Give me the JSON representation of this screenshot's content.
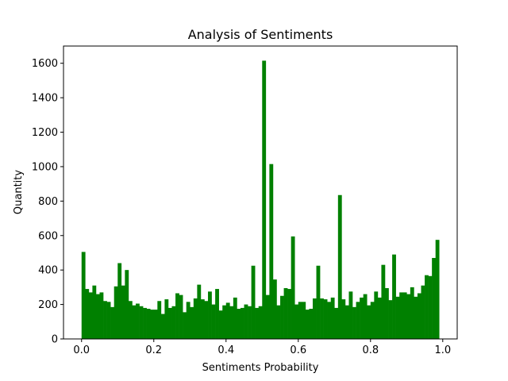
{
  "chart_data": {
    "type": "bar",
    "title": "Analysis of Sentiments",
    "xlabel": "Sentiments Probability",
    "ylabel": "Quantity",
    "xlim": [
      -0.05,
      1.04
    ],
    "ylim": [
      0,
      1700
    ],
    "bin_width": 0.01,
    "x_start": 0.0,
    "grid": false,
    "legend": "none",
    "bar_color": "#008000",
    "x_ticks": [
      {
        "value": 0.0,
        "label": "0.0"
      },
      {
        "value": 0.2,
        "label": "0.2"
      },
      {
        "value": 0.4,
        "label": "0.4"
      },
      {
        "value": 0.6,
        "label": "0.6"
      },
      {
        "value": 0.8,
        "label": "0.8"
      },
      {
        "value": 1.0,
        "label": "1.0"
      }
    ],
    "y_ticks": [
      {
        "value": 0,
        "label": "0"
      },
      {
        "value": 200,
        "label": "200"
      },
      {
        "value": 400,
        "label": "400"
      },
      {
        "value": 600,
        "label": "600"
      },
      {
        "value": 800,
        "label": "800"
      },
      {
        "value": 1000,
        "label": "1000"
      },
      {
        "value": 1200,
        "label": "1200"
      },
      {
        "value": 1400,
        "label": "1400"
      },
      {
        "value": 1600,
        "label": "1600"
      }
    ],
    "values": [
      505,
      290,
      270,
      310,
      260,
      270,
      220,
      215,
      185,
      305,
      440,
      310,
      400,
      220,
      195,
      205,
      190,
      180,
      175,
      170,
      170,
      220,
      145,
      230,
      180,
      190,
      265,
      255,
      155,
      215,
      185,
      235,
      315,
      230,
      220,
      275,
      200,
      290,
      165,
      195,
      210,
      190,
      240,
      175,
      180,
      200,
      190,
      425,
      180,
      190,
      1615,
      255,
      1015,
      345,
      195,
      250,
      295,
      290,
      595,
      200,
      215,
      215,
      170,
      175,
      235,
      425,
      235,
      230,
      215,
      240,
      180,
      835,
      230,
      195,
      275,
      185,
      215,
      240,
      260,
      195,
      215,
      275,
      240,
      430,
      295,
      225,
      490,
      245,
      270,
      270,
      260,
      300,
      245,
      265,
      310,
      370,
      365,
      470,
      575
    ]
  }
}
